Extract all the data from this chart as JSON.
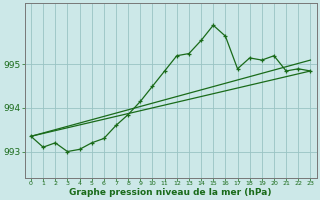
{
  "xlabel": "Graphe pression niveau de la mer (hPa)",
  "bg_color": "#cce8e8",
  "line_color": "#1a6b1a",
  "grid_color": "#99c4c4",
  "x_ticks": [
    0,
    1,
    2,
    3,
    4,
    5,
    6,
    7,
    8,
    9,
    10,
    11,
    12,
    13,
    14,
    15,
    16,
    17,
    18,
    19,
    20,
    21,
    22,
    23
  ],
  "ylim": [
    992.4,
    996.4
  ],
  "y_ticks": [
    993,
    994,
    995
  ],
  "series1_x": [
    0,
    1,
    2,
    3,
    4,
    5,
    6,
    7,
    8,
    9,
    10,
    11,
    12,
    13,
    14,
    15,
    16,
    17,
    18,
    19,
    20,
    21,
    22,
    23
  ],
  "series1_y": [
    993.35,
    993.1,
    993.2,
    993.0,
    993.05,
    993.2,
    993.3,
    993.6,
    993.85,
    994.15,
    994.5,
    994.85,
    995.2,
    995.25,
    995.55,
    995.9,
    995.65,
    994.9,
    995.15,
    995.1,
    995.2,
    994.85,
    994.9,
    994.85
  ],
  "line2_x": [
    0,
    23
  ],
  "line2_y": [
    993.35,
    994.85
  ],
  "line3_x": [
    0,
    23
  ],
  "line3_y": [
    993.35,
    995.1
  ]
}
